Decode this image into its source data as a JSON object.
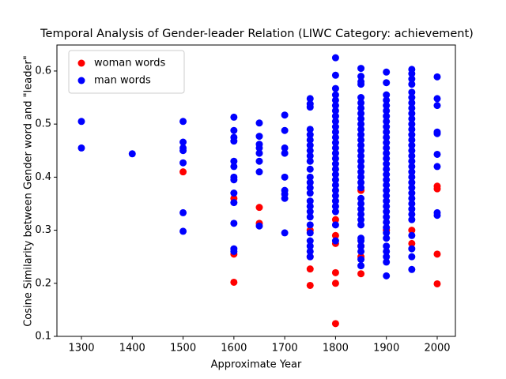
{
  "chart_data": {
    "type": "scatter",
    "title": "Temporal Analysis of Gender-leader Relation (LIWC Category: achievement)",
    "xlabel": "Approximate Year",
    "ylabel": "Cosine Similarity between Gender word and \"leader\"",
    "xlim": [
      1251.8,
      2035.8
    ],
    "ylim": [
      0.1,
      0.649
    ],
    "xticks": [
      1300,
      1400,
      1500,
      1600,
      1700,
      1800,
      1900,
      2000
    ],
    "yticks": [
      0.1,
      0.2,
      0.3,
      0.4,
      0.5,
      0.6
    ],
    "legend": "upper left",
    "series": [
      {
        "name": "woman words",
        "color": "#ff0000",
        "x": [
          1500,
          1600,
          1600,
          1600,
          1650,
          1650,
          1750,
          1750,
          1750,
          1750,
          1800,
          1800,
          1800,
          1800,
          1800,
          1800,
          1850,
          1850,
          1850,
          1850,
          1900,
          1950,
          1950,
          2000,
          2000,
          2000,
          2000
        ],
        "y": [
          0.41,
          0.255,
          0.202,
          0.36,
          0.343,
          0.313,
          0.196,
          0.227,
          0.25,
          0.3,
          0.124,
          0.2,
          0.22,
          0.275,
          0.29,
          0.32,
          0.218,
          0.25,
          0.27,
          0.375,
          0.3,
          0.275,
          0.3,
          0.383,
          0.378,
          0.255,
          0.199
        ]
      },
      {
        "name": "man words",
        "color": "#0000ff",
        "x": [
          1300,
          1300,
          1400,
          1500,
          1500,
          1500,
          1500,
          1500,
          1500,
          1500,
          1600,
          1600,
          1600,
          1600,
          1600,
          1600,
          1600,
          1600,
          1600,
          1600,
          1600,
          1600,
          1600,
          1650,
          1650,
          1650,
          1650,
          1650,
          1650,
          1650,
          1650,
          1700,
          1700,
          1700,
          1700,
          1700,
          1700,
          1700,
          1700,
          1700,
          1750,
          1750,
          1750,
          1750,
          1750,
          1750,
          1750,
          1750,
          1750,
          1750,
          1750,
          1750,
          1750,
          1750,
          1750,
          1750,
          1750,
          1750,
          1750,
          1750,
          1750,
          1750,
          1750,
          1750,
          1750,
          1800,
          1800,
          1800,
          1800,
          1800,
          1800,
          1800,
          1800,
          1800,
          1800,
          1800,
          1800,
          1800,
          1800,
          1800,
          1800,
          1800,
          1800,
          1800,
          1800,
          1800,
          1800,
          1800,
          1800,
          1800,
          1800,
          1800,
          1800,
          1850,
          1850,
          1850,
          1850,
          1850,
          1850,
          1850,
          1850,
          1850,
          1850,
          1850,
          1850,
          1850,
          1850,
          1850,
          1850,
          1850,
          1850,
          1850,
          1850,
          1850,
          1850,
          1850,
          1850,
          1850,
          1850,
          1850,
          1850,
          1850,
          1850,
          1850,
          1850,
          1850,
          1850,
          1900,
          1900,
          1900,
          1900,
          1900,
          1900,
          1900,
          1900,
          1900,
          1900,
          1900,
          1900,
          1900,
          1900,
          1900,
          1900,
          1900,
          1900,
          1900,
          1900,
          1900,
          1900,
          1900,
          1900,
          1900,
          1900,
          1900,
          1900,
          1900,
          1900,
          1900,
          1900,
          1900,
          1900,
          1900,
          1950,
          1950,
          1950,
          1950,
          1950,
          1950,
          1950,
          1950,
          1950,
          1950,
          1950,
          1950,
          1950,
          1950,
          1950,
          1950,
          1950,
          1950,
          1950,
          1950,
          1950,
          1950,
          1950,
          1950,
          1950,
          1950,
          1950,
          1950,
          1950,
          1950,
          1950,
          1950,
          1950,
          2000,
          2000,
          2000,
          2000,
          2000,
          2000,
          2000,
          2000,
          2000
        ],
        "y": [
          0.505,
          0.455,
          0.444,
          0.505,
          0.466,
          0.455,
          0.45,
          0.427,
          0.333,
          0.298,
          0.513,
          0.488,
          0.475,
          0.468,
          0.43,
          0.42,
          0.4,
          0.395,
          0.37,
          0.352,
          0.313,
          0.265,
          0.26,
          0.502,
          0.477,
          0.462,
          0.455,
          0.445,
          0.43,
          0.41,
          0.308,
          0.517,
          0.488,
          0.455,
          0.445,
          0.4,
          0.375,
          0.368,
          0.36,
          0.295,
          0.548,
          0.538,
          0.532,
          0.49,
          0.48,
          0.47,
          0.46,
          0.45,
          0.44,
          0.43,
          0.415,
          0.4,
          0.39,
          0.38,
          0.37,
          0.355,
          0.345,
          0.335,
          0.325,
          0.31,
          0.295,
          0.28,
          0.27,
          0.26,
          0.25,
          0.625,
          0.592,
          0.567,
          0.555,
          0.545,
          0.535,
          0.525,
          0.515,
          0.505,
          0.495,
          0.485,
          0.475,
          0.465,
          0.455,
          0.445,
          0.435,
          0.425,
          0.415,
          0.405,
          0.395,
          0.385,
          0.375,
          0.365,
          0.355,
          0.345,
          0.335,
          0.31,
          0.28,
          0.605,
          0.59,
          0.58,
          0.575,
          0.55,
          0.54,
          0.53,
          0.52,
          0.51,
          0.5,
          0.49,
          0.48,
          0.47,
          0.46,
          0.45,
          0.44,
          0.43,
          0.42,
          0.41,
          0.4,
          0.39,
          0.38,
          0.36,
          0.35,
          0.34,
          0.33,
          0.32,
          0.31,
          0.285,
          0.28,
          0.27,
          0.26,
          0.245,
          0.233,
          0.598,
          0.578,
          0.555,
          0.545,
          0.535,
          0.525,
          0.515,
          0.505,
          0.495,
          0.485,
          0.475,
          0.465,
          0.455,
          0.445,
          0.435,
          0.425,
          0.415,
          0.405,
          0.395,
          0.385,
          0.375,
          0.365,
          0.355,
          0.345,
          0.335,
          0.325,
          0.315,
          0.305,
          0.295,
          0.285,
          0.27,
          0.26,
          0.25,
          0.24,
          0.214,
          0.603,
          0.595,
          0.585,
          0.575,
          0.56,
          0.55,
          0.54,
          0.53,
          0.52,
          0.51,
          0.5,
          0.49,
          0.48,
          0.47,
          0.46,
          0.45,
          0.44,
          0.43,
          0.42,
          0.41,
          0.4,
          0.39,
          0.38,
          0.37,
          0.36,
          0.35,
          0.34,
          0.33,
          0.32,
          0.29,
          0.265,
          0.25,
          0.226,
          0.589,
          0.548,
          0.535,
          0.485,
          0.482,
          0.443,
          0.42,
          0.333,
          0.328
        ]
      }
    ]
  }
}
